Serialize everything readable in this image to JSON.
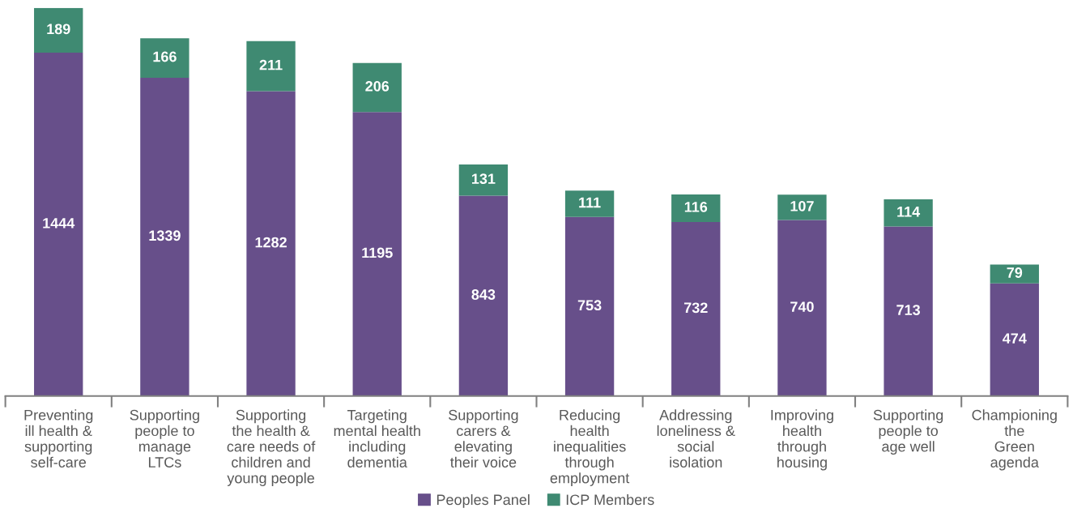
{
  "chart_data": {
    "type": "bar",
    "stacked": true,
    "data_labels": true,
    "grid": false,
    "legend": "bottom",
    "tick_labels": "x",
    "categories": [
      "Preventing\nill health &\nsupporting\nself-care",
      "Supporting\npeople to\nmanage\nLTCs",
      "Supporting\nthe health &\ncare needs of\nchildren and\nyoung people",
      "Targeting\nmental health\nincluding\ndementia",
      "Supporting\ncarers &\nelevating\ntheir voice",
      "Reducing\nhealth\ninequalities\nthrough\nemployment",
      "Addressing\nloneliness &\nsocial\nisolation",
      "Improving\nhealth\nthrough\nhousing",
      "Supporting\npeople to\nage well",
      "Championing\nthe\nGreen\nagenda"
    ],
    "series": [
      {
        "name": "Peoples Panel",
        "color": "#674f8a",
        "values": [
          1444,
          1339,
          1282,
          1195,
          843,
          753,
          732,
          740,
          713,
          474
        ]
      },
      {
        "name": "ICP Members",
        "color": "#3f8a72",
        "values": [
          189,
          166,
          211,
          206,
          131,
          111,
          116,
          107,
          114,
          79
        ]
      }
    ]
  }
}
